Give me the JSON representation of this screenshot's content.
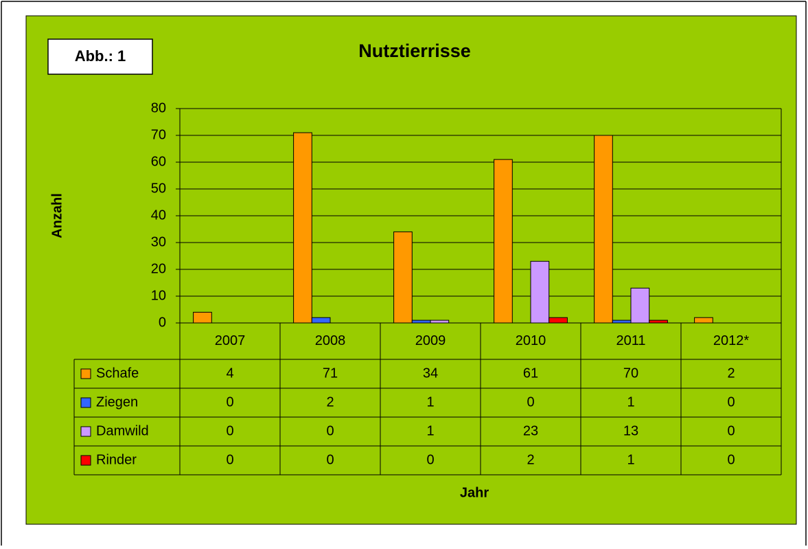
{
  "figure_label": "Abb.: 1",
  "chart_data": {
    "type": "bar",
    "title": "Nutztierrisse",
    "xlabel": "Jahr",
    "ylabel": "Anzahl",
    "categories": [
      "2007",
      "2008",
      "2009",
      "2010",
      "2011",
      "2012*"
    ],
    "series": [
      {
        "name": "Schafe",
        "color": "#ff9900",
        "values": [
          4,
          71,
          34,
          61,
          70,
          2
        ]
      },
      {
        "name": "Ziegen",
        "color": "#3366ff",
        "values": [
          0,
          2,
          1,
          0,
          1,
          0
        ]
      },
      {
        "name": "Damwild",
        "color": "#cc99ff",
        "values": [
          0,
          0,
          1,
          23,
          13,
          0
        ]
      },
      {
        "name": "Rinder",
        "color": "#ff0000",
        "values": [
          0,
          0,
          0,
          2,
          1,
          0
        ]
      }
    ],
    "ylim": [
      0,
      80
    ],
    "yticks": [
      0,
      10,
      20,
      30,
      40,
      50,
      60,
      70,
      80
    ],
    "grid": true,
    "data_table": true
  }
}
